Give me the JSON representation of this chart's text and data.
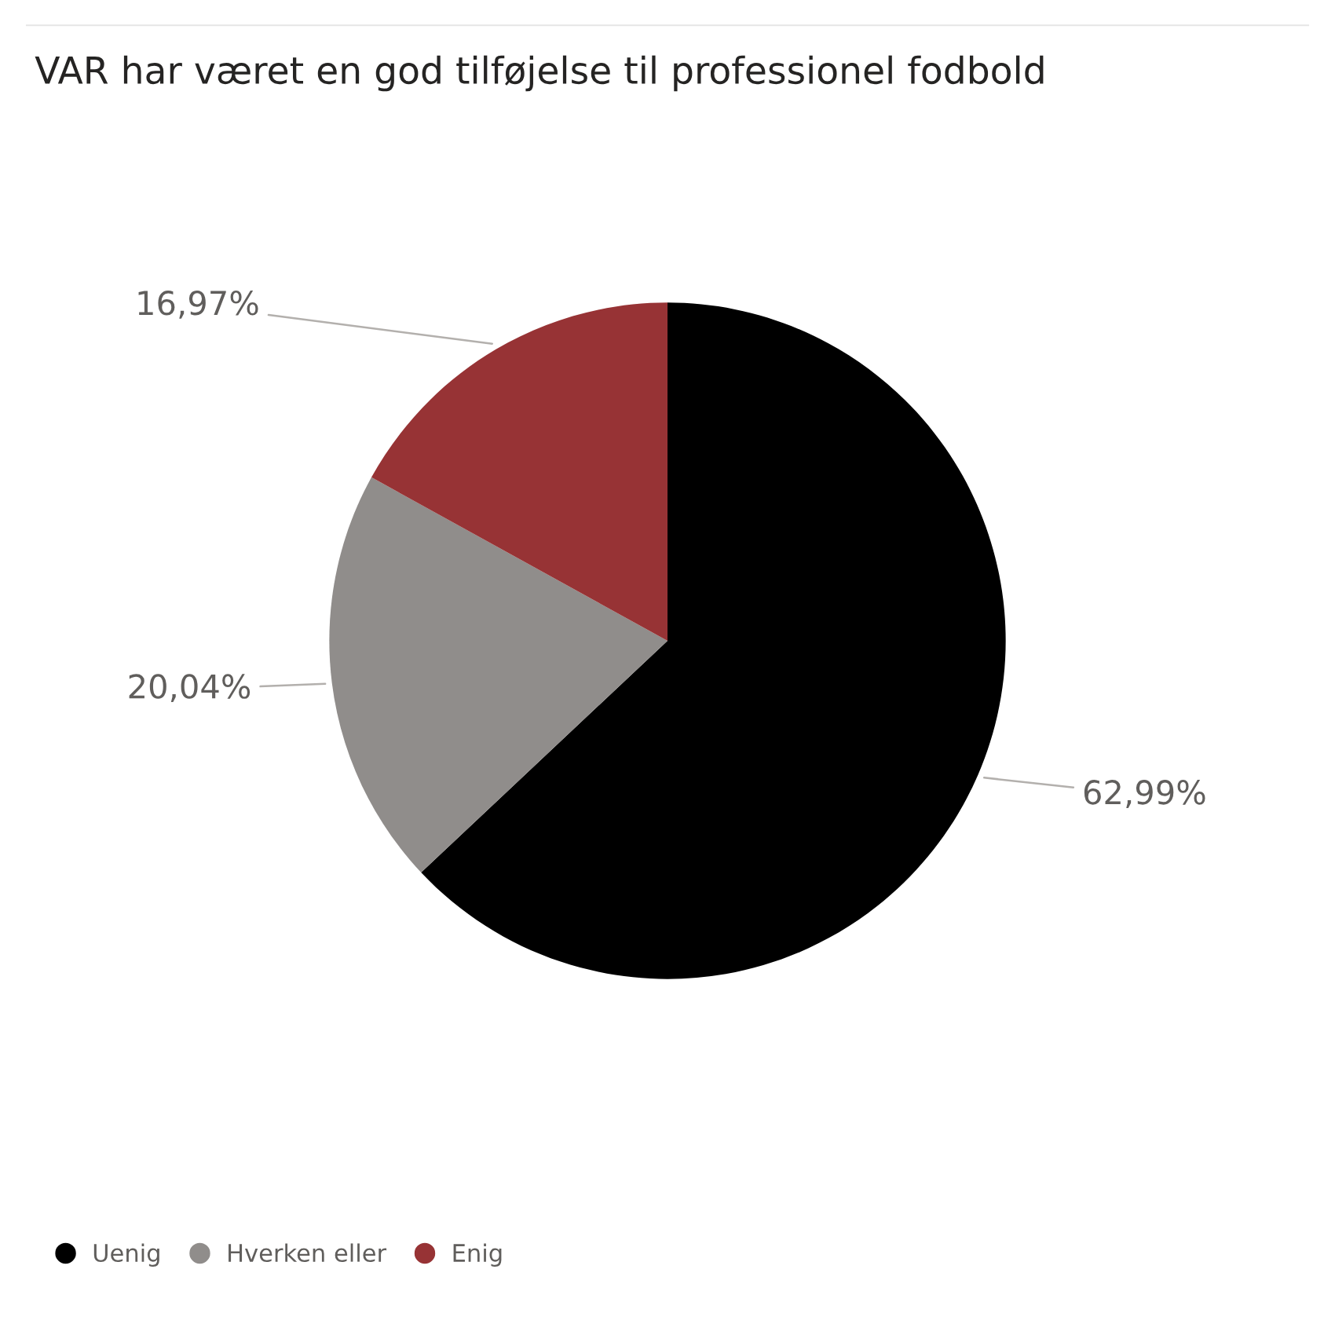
{
  "chart_data": {
    "type": "pie",
    "title": "VAR har været en god tilføjelse til professionel fodbold",
    "categories": [
      "Uenig",
      "Hverken eller",
      "Enig"
    ],
    "values": [
      62.99,
      20.04,
      16.97
    ],
    "colors": [
      "#000000",
      "#908d8b",
      "#973335"
    ],
    "value_labels": [
      "62,99%",
      "20,04%",
      "16,97%"
    ],
    "legend": "bottom left"
  }
}
